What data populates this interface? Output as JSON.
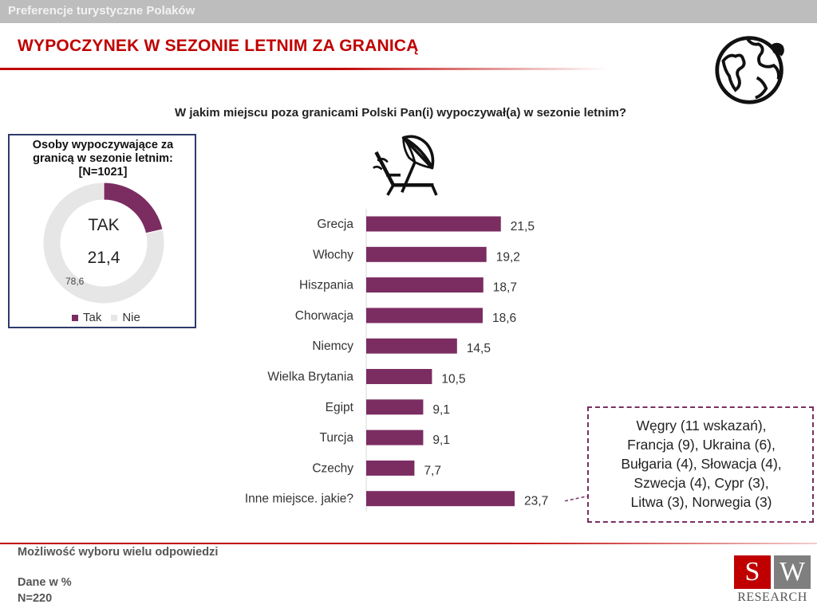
{
  "header": {
    "section_title": "Preferencje turystyczne Polaków",
    "page_title": "WYPOCZYNEK W SEZONIE LETNIM ZA GRANICĄ"
  },
  "question": "W jakim miejscu poza granicami Polski Pan(i) wypoczywał(a) w sezonie letnim?",
  "donut": {
    "title_line1": "Osoby wypoczywające za",
    "title_line2": "granicą w sezonie letnim:",
    "title_line3": "[N=1021]",
    "center_label": "TAK",
    "center_value": "21,4",
    "nie_value_label": "78,6",
    "legend_tak": "Tak",
    "legend_nie": "Nie",
    "colors": {
      "tak": "#7b2d62",
      "nie": "#e6e6e6"
    }
  },
  "chart_data": [
    {
      "type": "pie",
      "categories": [
        "Tak",
        "Nie"
      ],
      "values": [
        21.4,
        78.6
      ],
      "labels": [
        "21,4",
        "78,6"
      ],
      "colors": [
        "#7b2d62",
        "#e6e6e6"
      ]
    },
    {
      "type": "bar",
      "orientation": "horizontal",
      "categories": [
        "Grecja",
        "Włochy",
        "Hiszpania",
        "Chorwacja",
        "Niemcy",
        "Wielka Brytania",
        "Egipt",
        "Turcja",
        "Czechy",
        "Inne miejsce. jakie?"
      ],
      "values": [
        21.5,
        19.2,
        18.7,
        18.6,
        14.5,
        10.5,
        9.1,
        9.1,
        7.7,
        23.7
      ],
      "labels": [
        "21,5",
        "19,2",
        "18,7",
        "18,6",
        "14,5",
        "10,5",
        "9,1",
        "9,1",
        "7,7",
        "23,7"
      ],
      "color": "#7b2d62",
      "xlim": [
        0,
        25
      ]
    }
  ],
  "callout": {
    "lines": [
      "Węgry (11 wskazań),",
      "Francja (9), Ukraina (6),",
      "Bułgaria (4), Słowacja (4),",
      "Szwecja (4), Cypr (3),",
      "Litwa (3), Norwegia (3)"
    ]
  },
  "footer": {
    "note1": "Możliwość wyboru wielu odpowiedzi",
    "note2": "Dane w %",
    "note3": "N=220",
    "logo_s": "S",
    "logo_w": "W",
    "logo_text": "RESEARCH"
  },
  "icons": {
    "globe": "globe-icon",
    "umbrella": "beach-umbrella-lounger-icon"
  }
}
